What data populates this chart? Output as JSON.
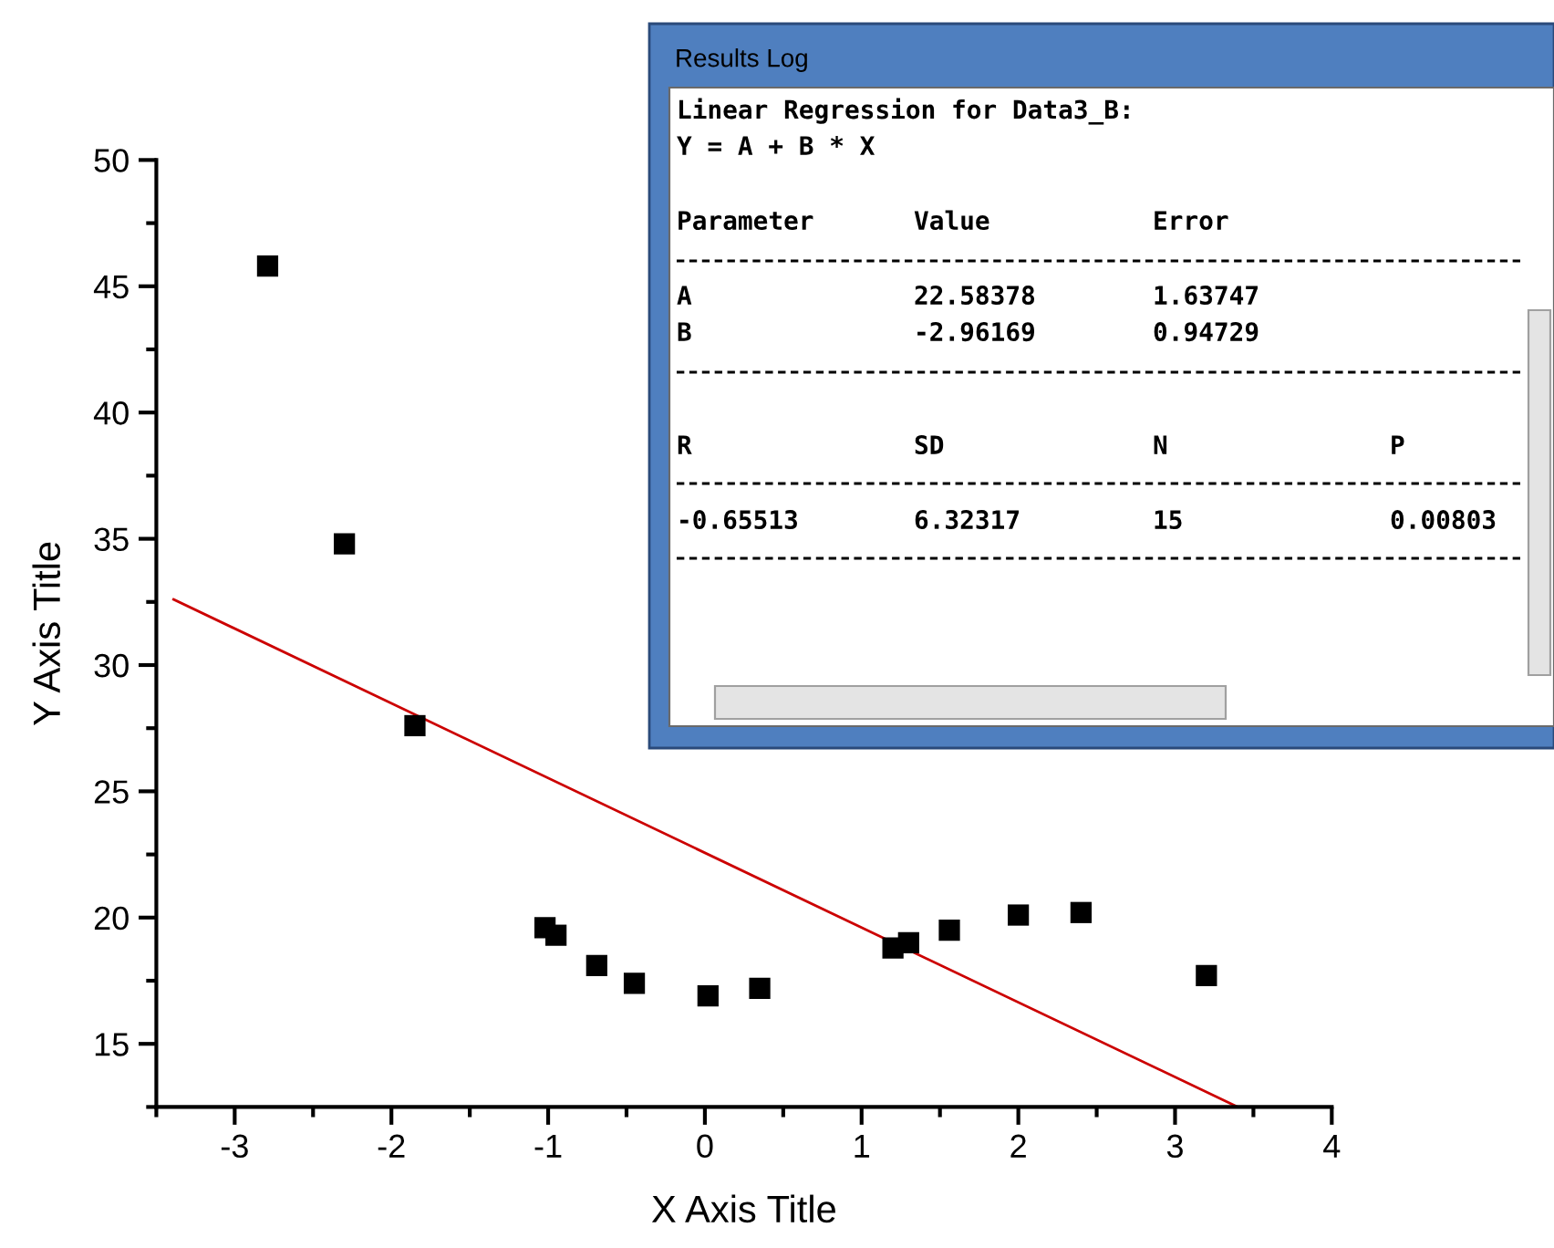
{
  "chart_data": {
    "type": "scatter",
    "xlabel": "X Axis Title",
    "ylabel": "Y Axis Title",
    "xlim": [
      -3.5,
      4
    ],
    "ylim": [
      12.5,
      50
    ],
    "xticks": [
      -3,
      -2,
      -1,
      0,
      1,
      2,
      3,
      4
    ],
    "yticks": [
      15,
      20,
      25,
      30,
      35,
      40,
      45,
      50
    ],
    "grid": false,
    "series": [
      {
        "marker": "square",
        "color": "#000000",
        "x": [
          -2.79,
          -2.3,
          -1.85,
          -1.02,
          -0.95,
          -0.69,
          -0.45,
          0.02,
          0.35,
          1.2,
          1.3,
          1.56,
          2.0,
          2.4,
          3.2
        ],
        "values": [
          45.8,
          34.8,
          27.6,
          19.6,
          19.3,
          18.1,
          17.4,
          16.9,
          17.2,
          18.8,
          19.0,
          19.5,
          20.1,
          20.2,
          17.7
        ]
      },
      {
        "type": "line",
        "marker": "none",
        "color": "#cc0000",
        "x": [
          -3.39,
          3.4
        ],
        "values": [
          32.6,
          12.5
        ]
      }
    ],
    "annotations": [
      "Results Log",
      "Linear Regression for Data3_B:",
      "Y = A + B * X",
      "Parameter",
      "Value",
      "Error",
      "A",
      "22.58378",
      "1.63747",
      "B",
      "-2.96169",
      "0.94729",
      "R",
      "SD",
      "N",
      "P",
      "-0.65513",
      "6.32317",
      "15",
      "0.00803"
    ]
  }
}
